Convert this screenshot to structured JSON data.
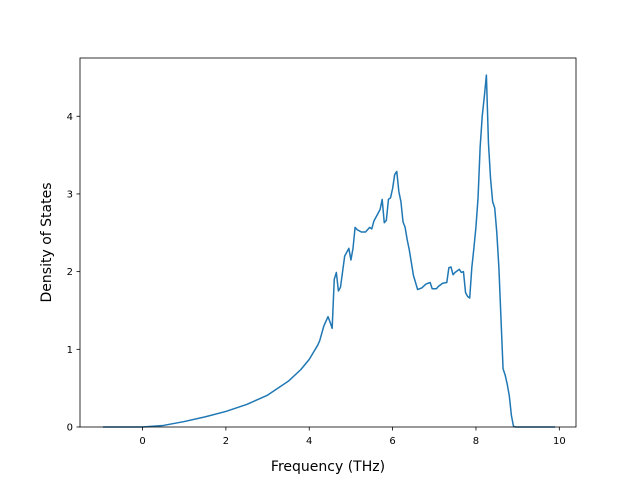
{
  "chart_data": {
    "type": "line",
    "title": "",
    "xlabel": "Frequency (THz)",
    "ylabel": "Density of States",
    "xlim": [
      -1.5,
      10.4
    ],
    "ylim": [
      0,
      4.75
    ],
    "xticks": [
      "0",
      "2",
      "4",
      "6",
      "8",
      "10"
    ],
    "yticks": [
      "0",
      "1",
      "2",
      "3",
      "4"
    ],
    "xtick_values": [
      0,
      2,
      4,
      6,
      8,
      10
    ],
    "ytick_values": [
      0,
      1,
      2,
      3,
      4
    ],
    "grid": false,
    "legend": "none",
    "line_color": "#1f77b4",
    "series": [
      {
        "x": [
          -0.95,
          -0.5,
          0,
          0.5,
          1.0,
          1.5,
          2.0,
          2.5,
          3.0,
          3.5,
          3.8,
          4.0,
          4.1,
          4.2,
          4.25,
          4.35,
          4.45,
          4.5,
          4.55,
          4.6,
          4.65,
          4.7,
          4.75,
          4.85,
          4.9,
          4.95,
          5.0,
          5.05,
          5.1,
          5.15,
          5.25,
          5.35,
          5.45,
          5.5,
          5.55,
          5.65,
          5.7,
          5.75,
          5.8,
          5.85,
          5.9,
          5.95,
          6.0,
          6.05,
          6.1,
          6.15,
          6.2,
          6.25,
          6.3,
          6.35,
          6.4,
          6.5,
          6.6,
          6.7,
          6.8,
          6.9,
          6.95,
          7.05,
          7.1,
          7.2,
          7.3,
          7.35,
          7.4,
          7.45,
          7.5,
          7.55,
          7.6,
          7.65,
          7.7,
          7.75,
          7.8,
          7.85,
          7.9,
          7.95,
          8.0,
          8.05,
          8.1,
          8.15,
          8.2,
          8.25,
          8.3,
          8.35,
          8.4,
          8.45,
          8.5,
          8.55,
          8.6,
          8.65,
          8.7,
          8.75,
          8.8,
          8.85,
          8.9,
          8.95,
          9.0,
          9.05,
          9.1,
          9.3,
          9.5,
          9.7,
          9.9
        ],
        "y": [
          0,
          0,
          0,
          0.02,
          0.07,
          0.13,
          0.2,
          0.29,
          0.41,
          0.59,
          0.74,
          0.87,
          0.96,
          1.05,
          1.11,
          1.3,
          1.42,
          1.35,
          1.27,
          1.9,
          1.99,
          1.75,
          1.8,
          2.2,
          2.25,
          2.3,
          2.15,
          2.3,
          2.57,
          2.54,
          2.51,
          2.51,
          2.57,
          2.55,
          2.65,
          2.75,
          2.8,
          2.93,
          2.63,
          2.66,
          2.93,
          2.95,
          3.07,
          3.25,
          3.29,
          3.03,
          2.9,
          2.64,
          2.57,
          2.41,
          2.28,
          1.95,
          1.77,
          1.79,
          1.84,
          1.86,
          1.78,
          1.78,
          1.81,
          1.85,
          1.86,
          2.05,
          2.06,
          1.96,
          1.99,
          2.01,
          2.03,
          1.99,
          2.0,
          1.73,
          1.68,
          1.66,
          2.05,
          2.3,
          2.58,
          2.95,
          3.6,
          4.0,
          4.25,
          4.53,
          3.65,
          3.2,
          2.9,
          2.82,
          2.5,
          2.05,
          1.4,
          0.75,
          0.67,
          0.55,
          0.4,
          0.15,
          0.01,
          0,
          0,
          0,
          0,
          0,
          0,
          0,
          0
        ]
      }
    ]
  }
}
